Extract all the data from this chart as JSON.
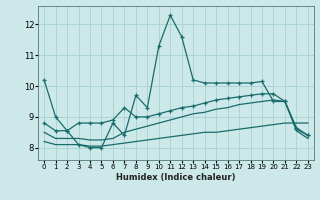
{
  "xlabel": "Humidex (Indice chaleur)",
  "bg_color": "#cce8e8",
  "grid_color": "#aad4d4",
  "line_color": "#1a6b6b",
  "xlim": [
    -0.5,
    23.5
  ],
  "ylim": [
    7.6,
    12.6
  ],
  "xticks": [
    0,
    1,
    2,
    3,
    4,
    5,
    6,
    7,
    8,
    9,
    10,
    11,
    12,
    13,
    14,
    15,
    16,
    17,
    18,
    19,
    20,
    21,
    22,
    23
  ],
  "yticks": [
    8,
    9,
    10,
    11,
    12
  ],
  "line1_x": [
    0,
    1,
    2,
    3,
    4,
    5,
    6,
    7,
    8,
    9,
    10,
    11,
    12,
    13,
    14,
    15,
    16,
    17,
    18,
    19,
    20,
    21,
    22,
    23
  ],
  "line1_y": [
    10.2,
    9.0,
    8.55,
    8.1,
    8.0,
    8.0,
    8.8,
    8.4,
    9.7,
    9.3,
    11.3,
    12.3,
    11.6,
    10.2,
    10.1,
    10.1,
    10.1,
    10.1,
    10.1,
    10.15,
    9.5,
    9.5,
    8.65,
    8.4
  ],
  "line2_x": [
    0,
    1,
    2,
    3,
    4,
    5,
    6,
    7,
    8,
    9,
    10,
    11,
    12,
    13,
    14,
    15,
    16,
    17,
    18,
    19,
    20,
    21,
    22,
    23
  ],
  "line2_y": [
    8.8,
    8.55,
    8.55,
    8.8,
    8.8,
    8.8,
    8.9,
    9.3,
    9.0,
    9.0,
    9.1,
    9.2,
    9.3,
    9.35,
    9.45,
    9.55,
    9.6,
    9.65,
    9.7,
    9.75,
    9.75,
    9.5,
    8.6,
    8.4
  ],
  "line3_x": [
    0,
    1,
    2,
    3,
    4,
    5,
    6,
    7,
    8,
    9,
    10,
    11,
    12,
    13,
    14,
    15,
    16,
    17,
    18,
    19,
    20,
    21,
    22,
    23
  ],
  "line3_y": [
    8.5,
    8.3,
    8.3,
    8.3,
    8.25,
    8.25,
    8.3,
    8.5,
    8.6,
    8.7,
    8.8,
    8.9,
    9.0,
    9.1,
    9.15,
    9.25,
    9.3,
    9.4,
    9.45,
    9.5,
    9.55,
    9.5,
    8.55,
    8.3
  ],
  "line4_x": [
    0,
    1,
    2,
    3,
    4,
    5,
    6,
    7,
    8,
    9,
    10,
    11,
    12,
    13,
    14,
    15,
    16,
    17,
    18,
    19,
    20,
    21,
    22,
    23
  ],
  "line4_y": [
    8.2,
    8.1,
    8.1,
    8.1,
    8.05,
    8.05,
    8.1,
    8.15,
    8.2,
    8.25,
    8.3,
    8.35,
    8.4,
    8.45,
    8.5,
    8.5,
    8.55,
    8.6,
    8.65,
    8.7,
    8.75,
    8.8,
    8.8,
    8.8
  ]
}
